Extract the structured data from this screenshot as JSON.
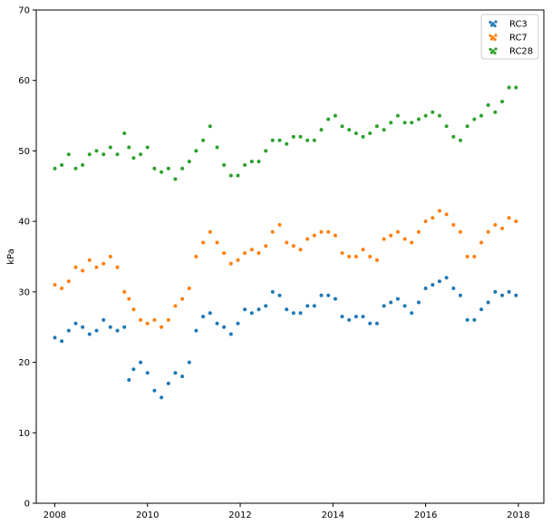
{
  "chart_data": {
    "type": "scatter",
    "title": "",
    "xlabel": "",
    "ylabel": "kPa",
    "xlim": [
      2007.6,
      2018.55
    ],
    "ylim": [
      0,
      70
    ],
    "xticks": [
      2008,
      2010,
      2012,
      2014,
      2016,
      2018
    ],
    "yticks": [
      0,
      10,
      20,
      30,
      40,
      50,
      60,
      70
    ],
    "grid": false,
    "legend_position": "top-right",
    "series": [
      {
        "name": "RC3",
        "color": "#1f77b4",
        "x": [
          2008.0,
          2008.15,
          2008.3,
          2008.45,
          2008.6,
          2008.75,
          2008.9,
          2009.05,
          2009.2,
          2009.35,
          2009.5,
          2009.6,
          2009.7,
          2009.85,
          2010.0,
          2010.15,
          2010.3,
          2010.45,
          2010.6,
          2010.75,
          2010.9,
          2011.05,
          2011.2,
          2011.35,
          2011.5,
          2011.65,
          2011.8,
          2011.95,
          2012.1,
          2012.25,
          2012.4,
          2012.55,
          2012.7,
          2012.85,
          2013.0,
          2013.15,
          2013.3,
          2013.45,
          2013.6,
          2013.75,
          2013.9,
          2014.05,
          2014.2,
          2014.35,
          2014.5,
          2014.65,
          2014.8,
          2014.95,
          2015.1,
          2015.25,
          2015.4,
          2015.55,
          2015.7,
          2015.85,
          2016.0,
          2016.15,
          2016.3,
          2016.45,
          2016.6,
          2016.75,
          2016.9,
          2017.05,
          2017.2,
          2017.35,
          2017.5,
          2017.65,
          2017.8,
          2017.95
        ],
        "y": [
          23.5,
          23.0,
          24.5,
          25.5,
          25.0,
          24.0,
          24.5,
          26.0,
          25.0,
          24.5,
          25.0,
          17.5,
          19.0,
          20.0,
          18.5,
          16.0,
          15.0,
          17.0,
          18.5,
          18.0,
          20.0,
          24.5,
          26.5,
          27.0,
          25.5,
          25.0,
          24.0,
          25.5,
          27.5,
          27.0,
          27.5,
          28.0,
          30.0,
          29.5,
          27.5,
          27.0,
          27.0,
          28.0,
          28.0,
          29.5,
          29.5,
          29.0,
          26.5,
          26.0,
          26.5,
          26.5,
          25.5,
          25.5,
          28.0,
          28.5,
          29.0,
          28.0,
          27.0,
          28.5,
          30.5,
          31.0,
          31.5,
          32.0,
          30.5,
          29.5,
          26.0,
          26.0,
          27.5,
          28.5,
          30.0,
          29.5,
          30.0,
          29.5
        ]
      },
      {
        "name": "RC7",
        "color": "#ff7f0e",
        "x": [
          2008.0,
          2008.15,
          2008.3,
          2008.45,
          2008.6,
          2008.75,
          2008.9,
          2009.05,
          2009.2,
          2009.35,
          2009.5,
          2009.6,
          2009.7,
          2009.85,
          2010.0,
          2010.15,
          2010.3,
          2010.45,
          2010.6,
          2010.75,
          2010.9,
          2011.05,
          2011.2,
          2011.35,
          2011.5,
          2011.65,
          2011.8,
          2011.95,
          2012.1,
          2012.25,
          2012.4,
          2012.55,
          2012.7,
          2012.85,
          2013.0,
          2013.15,
          2013.3,
          2013.45,
          2013.6,
          2013.75,
          2013.9,
          2014.05,
          2014.2,
          2014.35,
          2014.5,
          2014.65,
          2014.8,
          2014.95,
          2015.1,
          2015.25,
          2015.4,
          2015.55,
          2015.7,
          2015.85,
          2016.0,
          2016.15,
          2016.3,
          2016.45,
          2016.6,
          2016.75,
          2016.9,
          2017.05,
          2017.2,
          2017.35,
          2017.5,
          2017.65,
          2017.8,
          2017.95
        ],
        "y": [
          31.0,
          30.5,
          31.5,
          33.5,
          33.0,
          34.5,
          33.5,
          34.0,
          35.0,
          33.5,
          30.0,
          29.0,
          27.5,
          26.0,
          25.5,
          26.0,
          25.0,
          26.0,
          28.0,
          29.0,
          30.5,
          35.0,
          37.0,
          38.5,
          37.0,
          35.5,
          34.0,
          34.5,
          35.5,
          36.0,
          35.5,
          36.5,
          38.5,
          39.5,
          37.0,
          36.5,
          36.0,
          37.5,
          38.0,
          38.5,
          38.5,
          38.0,
          35.5,
          35.0,
          35.0,
          36.0,
          35.0,
          34.5,
          37.5,
          38.0,
          38.5,
          37.5,
          37.0,
          38.5,
          40.0,
          40.5,
          41.5,
          41.0,
          39.5,
          38.5,
          35.0,
          35.0,
          37.0,
          38.5,
          39.5,
          39.0,
          40.5,
          40.0
        ]
      },
      {
        "name": "RC28",
        "color": "#2ca02c",
        "x": [
          2008.0,
          2008.15,
          2008.3,
          2008.45,
          2008.6,
          2008.75,
          2008.9,
          2009.05,
          2009.2,
          2009.35,
          2009.5,
          2009.6,
          2009.7,
          2009.85,
          2010.0,
          2010.15,
          2010.3,
          2010.45,
          2010.6,
          2010.75,
          2010.9,
          2011.05,
          2011.2,
          2011.35,
          2011.5,
          2011.65,
          2011.8,
          2011.95,
          2012.1,
          2012.25,
          2012.4,
          2012.55,
          2012.7,
          2012.85,
          2013.0,
          2013.15,
          2013.3,
          2013.45,
          2013.6,
          2013.75,
          2013.9,
          2014.05,
          2014.2,
          2014.35,
          2014.5,
          2014.65,
          2014.8,
          2014.95,
          2015.1,
          2015.25,
          2015.4,
          2015.55,
          2015.7,
          2015.85,
          2016.0,
          2016.15,
          2016.3,
          2016.45,
          2016.6,
          2016.75,
          2016.9,
          2017.05,
          2017.2,
          2017.35,
          2017.5,
          2017.65,
          2017.8,
          2017.95
        ],
        "y": [
          47.5,
          48.0,
          49.5,
          47.5,
          48.0,
          49.5,
          50.0,
          49.5,
          50.5,
          49.5,
          52.5,
          50.5,
          49.0,
          49.5,
          50.5,
          47.5,
          47.0,
          47.5,
          46.0,
          47.5,
          48.5,
          50.0,
          51.5,
          53.5,
          50.5,
          48.0,
          46.5,
          46.5,
          48.0,
          48.5,
          48.5,
          50.0,
          51.5,
          51.5,
          51.0,
          52.0,
          52.0,
          51.5,
          51.5,
          53.0,
          54.5,
          55.0,
          53.5,
          53.0,
          52.5,
          52.0,
          52.5,
          53.5,
          53.0,
          54.0,
          55.0,
          54.0,
          54.0,
          54.5,
          55.0,
          55.5,
          55.0,
          53.5,
          52.0,
          51.5,
          53.5,
          54.5,
          55.0,
          56.5,
          55.5,
          57.0,
          59.0,
          59.0
        ]
      }
    ]
  }
}
